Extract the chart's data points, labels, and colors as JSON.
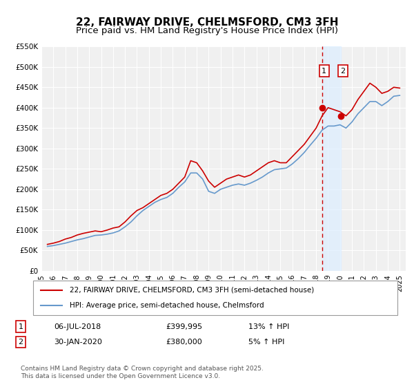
{
  "title": "22, FAIRWAY DRIVE, CHELMSFORD, CM3 3FH",
  "subtitle": "Price paid vs. HM Land Registry's House Price Index (HPI)",
  "xlabel": "",
  "ylabel": "",
  "ylim": [
    0,
    550000
  ],
  "yticks": [
    0,
    50000,
    100000,
    150000,
    200000,
    250000,
    300000,
    350000,
    400000,
    450000,
    500000,
    550000
  ],
  "ytick_labels": [
    "£0",
    "£50K",
    "£100K",
    "£150K",
    "£200K",
    "£250K",
    "£300K",
    "£350K",
    "£400K",
    "£450K",
    "£500K",
    "£550K"
  ],
  "xlim_start": 1995.0,
  "xlim_end": 2025.5,
  "xtick_years": [
    1995,
    1996,
    1997,
    1998,
    1999,
    2000,
    2001,
    2002,
    2003,
    2004,
    2005,
    2006,
    2007,
    2008,
    2009,
    2010,
    2011,
    2012,
    2013,
    2014,
    2015,
    2016,
    2017,
    2018,
    2019,
    2020,
    2021,
    2022,
    2023,
    2024,
    2025
  ],
  "red_color": "#cc0000",
  "blue_color": "#6699cc",
  "sale1_x": 2018.52,
  "sale1_y": 399995,
  "sale2_x": 2020.08,
  "sale2_y": 380000,
  "vline_x": 2018.52,
  "shade_start": 2018.52,
  "shade_end": 2020.08,
  "legend_label_red": "22, FAIRWAY DRIVE, CHELMSFORD, CM3 3FH (semi-detached house)",
  "legend_label_blue": "HPI: Average price, semi-detached house, Chelmsford",
  "annotation1_label": "1",
  "annotation2_label": "2",
  "transaction1_date": "06-JUL-2018",
  "transaction1_price": "£399,995",
  "transaction1_hpi": "13% ↑ HPI",
  "transaction2_date": "30-JAN-2020",
  "transaction2_price": "£380,000",
  "transaction2_hpi": "5% ↑ HPI",
  "footer": "Contains HM Land Registry data © Crown copyright and database right 2025.\nThis data is licensed under the Open Government Licence v3.0.",
  "bg_color": "#ffffff",
  "plot_bg_color": "#f0f0f0",
  "grid_color": "#ffffff",
  "title_fontsize": 11,
  "subtitle_fontsize": 9.5
}
